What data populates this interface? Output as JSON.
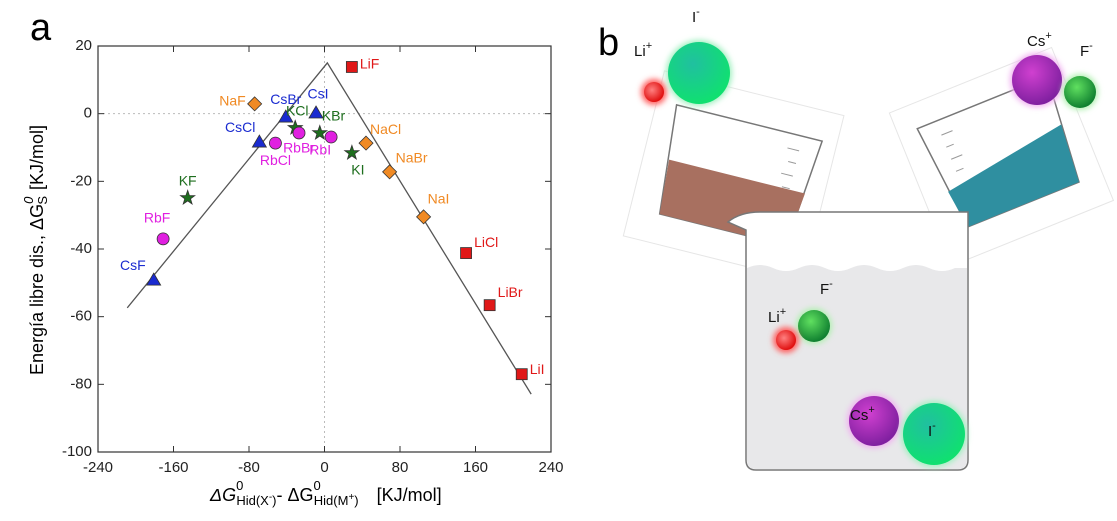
{
  "chart_data": {
    "type": "scatter",
    "panel_label": "a",
    "x_label": {
      "d1": "ΔG",
      "s1": "0",
      "b1": "Hid(X",
      "c1": "-",
      "e1": ")",
      "sep": "- ΔG",
      "s2": "0",
      "b2": "Hid(M",
      "c2": "+",
      "e2": ")",
      "unit": "[KJ/mol]"
    },
    "y_label": {
      "text": "Energía libre dis., ΔG",
      "sup": "0",
      "sub": "S",
      "unit": "[KJ/mol]"
    },
    "xlim": [
      -240,
      240
    ],
    "xticks": [
      -240,
      -160,
      -80,
      0,
      80,
      160,
      240
    ],
    "ylim": [
      -100,
      20
    ],
    "yticks": [
      -100,
      -80,
      -60,
      -40,
      -20,
      0,
      20
    ],
    "zero_lines": true,
    "series": [
      {
        "marker": "square",
        "color": "#e01818",
        "labels": [
          "LiF",
          "LiCl",
          "LiBr",
          "LiI"
        ],
        "x": [
          29,
          150,
          175,
          209
        ],
        "values": [
          13.8,
          -41.2,
          -56.6,
          -77
        ]
      },
      {
        "marker": "diamond",
        "color": "#f08a24",
        "labels": [
          "NaF",
          "NaCl",
          "NaBr",
          "NaI"
        ],
        "x": [
          -74,
          44,
          69,
          105
        ],
        "values": [
          2.9,
          -8.7,
          -17.2,
          -30.5
        ]
      },
      {
        "marker": "triangle",
        "color": "#1a2bd0",
        "labels": [
          "CsF",
          "CsCl",
          "CsBr",
          "CsI"
        ],
        "x": [
          -181,
          -69,
          -41,
          -9
        ],
        "values": [
          -49.2,
          -8.4,
          -1,
          0.2
        ]
      },
      {
        "marker": "star",
        "color": "#1e6e1e",
        "labels": [
          "KF",
          "KCl",
          "KBr",
          "KI"
        ],
        "x": [
          -145,
          -31,
          -5,
          29
        ],
        "values": [
          -24.9,
          -4.2,
          -5.7,
          -11.6
        ]
      },
      {
        "marker": "circle",
        "color": "#e020e0",
        "labels": [
          "RbF",
          "RbCl",
          "RbBr",
          "RbI"
        ],
        "x": [
          -171,
          -52,
          -27,
          7
        ],
        "values": [
          -37,
          -8.7,
          -5.7,
          -6.9
        ]
      }
    ],
    "fit_line": {
      "color": "#555555",
      "x": [
        -209,
        3,
        219
      ],
      "values": [
        -57.4,
        15,
        -82.9
      ]
    }
  },
  "diagram": {
    "panel_label": "b",
    "ions": [
      {
        "base": "Li",
        "sup": "+"
      },
      {
        "base": "I",
        "sup": "-"
      },
      {
        "base": "Cs",
        "sup": "+"
      },
      {
        "base": "F",
        "sup": "-"
      },
      {
        "base": "F",
        "sup": "-"
      },
      {
        "base": "Li",
        "sup": "+"
      },
      {
        "base": "Cs",
        "sup": "+"
      },
      {
        "base": "I",
        "sup": "-"
      }
    ]
  }
}
